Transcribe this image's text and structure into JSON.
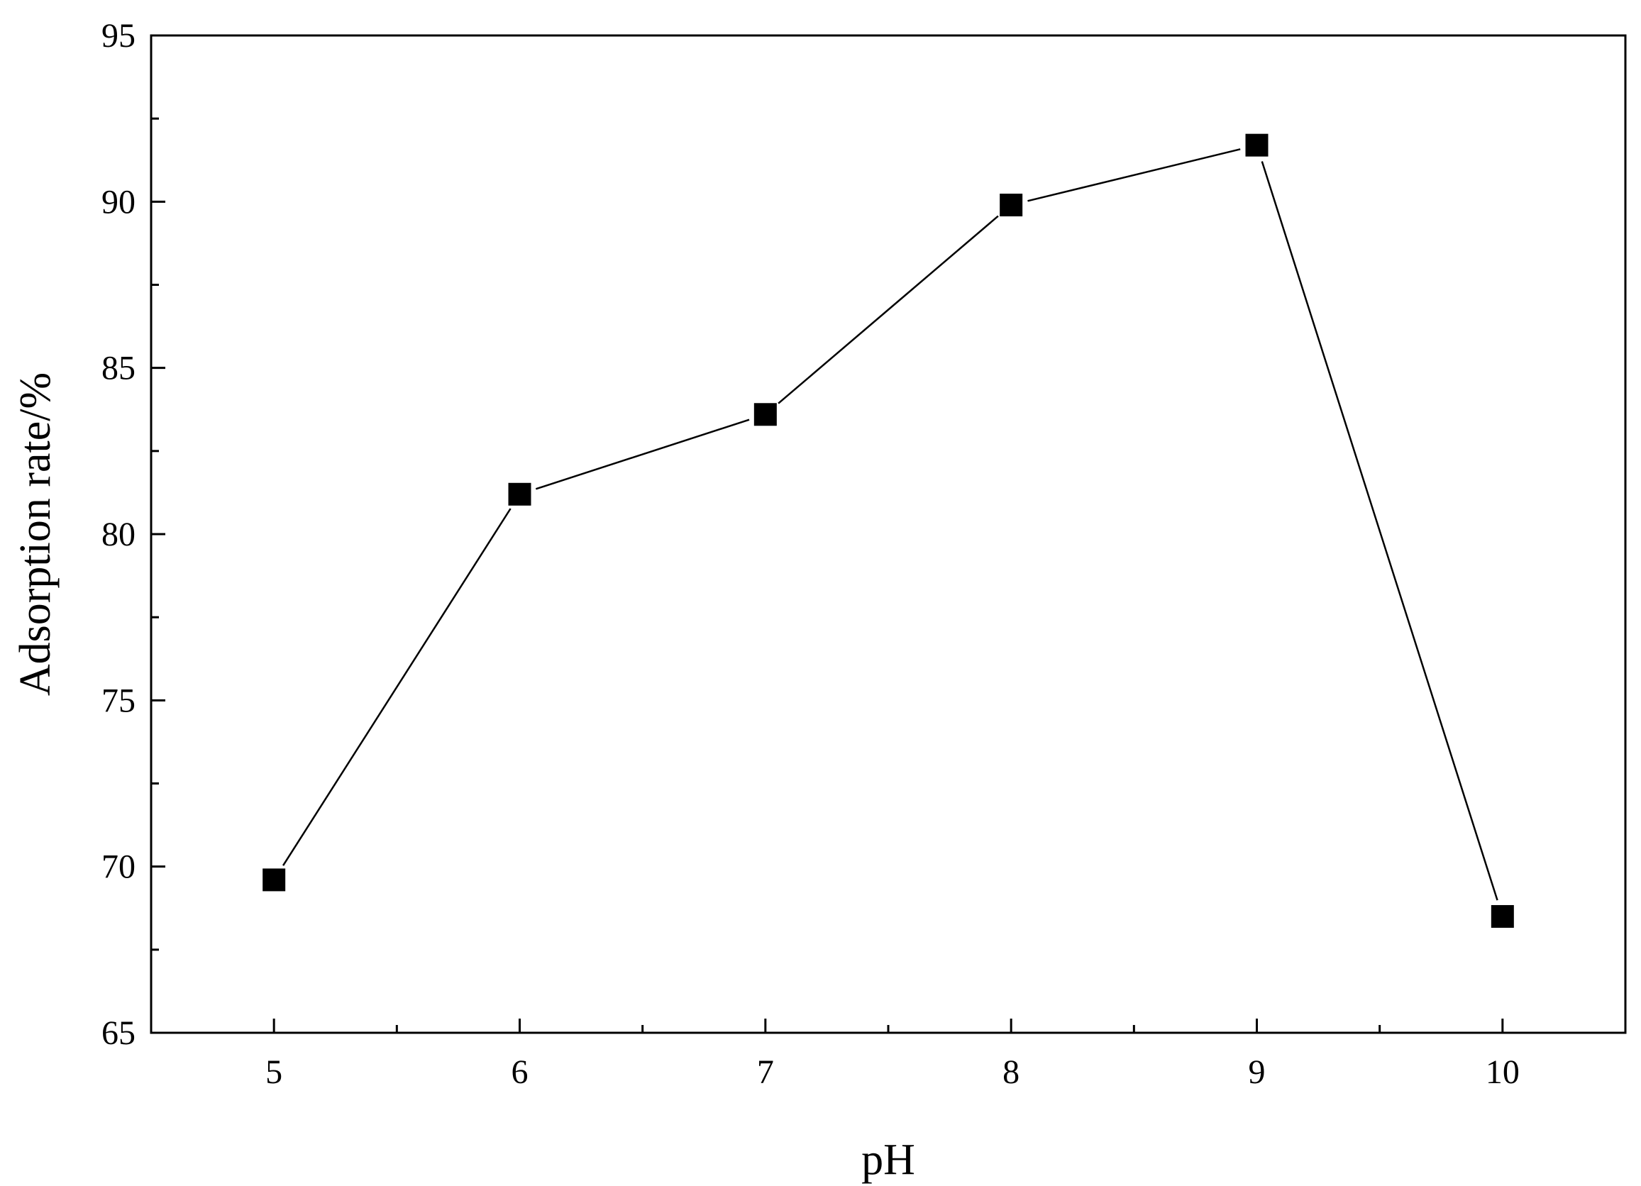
{
  "chart_data": {
    "type": "line",
    "title": "",
    "xlabel": "pH",
    "ylabel": "Adsorption rate/%",
    "xlim": [
      4.5,
      10.5
    ],
    "ylim": [
      65,
      95
    ],
    "x_ticks": [
      5,
      6,
      7,
      8,
      9,
      10
    ],
    "x_tick_labels": [
      "5",
      "6",
      "7",
      "8",
      "9",
      "10"
    ],
    "x_minor_ticks": [
      5.5,
      6.5,
      7.5,
      8.5,
      9.5
    ],
    "y_ticks": [
      65,
      70,
      75,
      80,
      85,
      90,
      95
    ],
    "y_tick_labels": [
      "65",
      "70",
      "75",
      "80",
      "85",
      "90",
      "95"
    ],
    "y_minor_ticks": [
      67.5,
      72.5,
      77.5,
      82.5,
      87.5,
      92.5
    ],
    "grid": false,
    "legend": "none",
    "marker": "square",
    "colors": {
      "line": "#000000",
      "marker": "#000000",
      "axes": "#000000"
    },
    "series": [
      {
        "x": [
          5,
          6,
          7,
          8,
          9,
          10
        ],
        "y": [
          69.6,
          81.2,
          83.6,
          89.9,
          91.7,
          68.5
        ]
      }
    ]
  }
}
